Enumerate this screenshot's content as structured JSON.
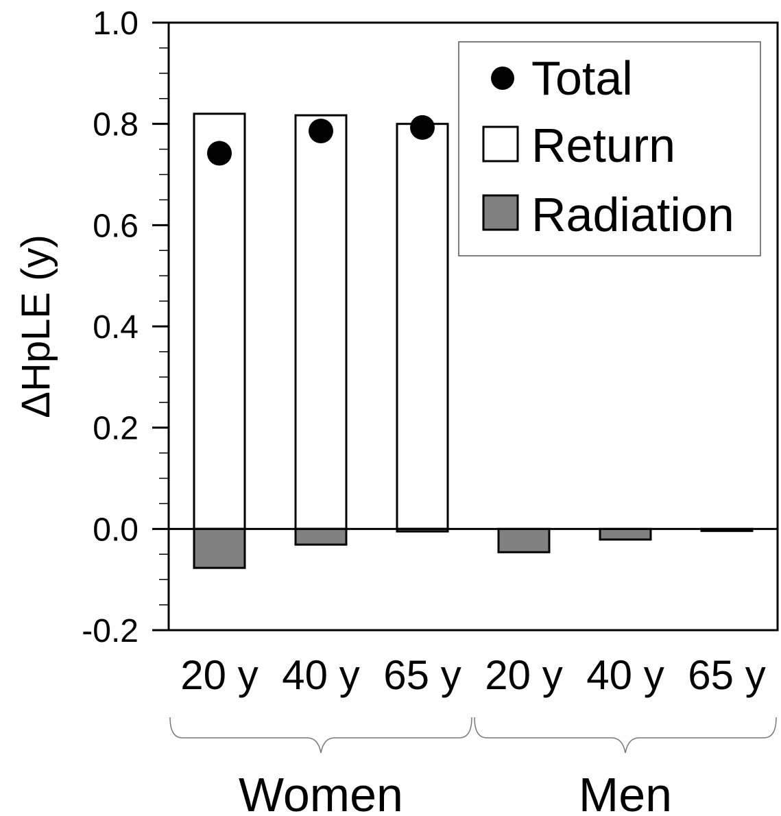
{
  "chart_data": {
    "type": "bar",
    "ylabel": "ΔHpLE (y)",
    "ylim": [
      -0.2,
      1.0
    ],
    "y_ticks": [
      "1.0",
      "0.8",
      "0.6",
      "0.4",
      "0.2",
      "0.0",
      "-0.2"
    ],
    "y_tick_values": [
      1.0,
      0.8,
      0.6,
      0.4,
      0.2,
      0.0,
      -0.2
    ],
    "categories": [
      "20 y",
      "40 y",
      "65 y",
      "20 y",
      "40 y",
      "65 y"
    ],
    "groups": [
      {
        "label": "Women",
        "categories": [
          0,
          1,
          2
        ]
      },
      {
        "label": "Men",
        "categories": [
          3,
          4,
          5
        ]
      }
    ],
    "series": [
      {
        "name": "Return",
        "kind": "bar",
        "color": "#ffffff",
        "values": [
          0.82,
          0.817,
          0.8,
          null,
          null,
          null
        ]
      },
      {
        "name": "Radiation",
        "kind": "bar",
        "color": "#808080",
        "values": [
          -0.077,
          -0.031,
          -0.005,
          -0.046,
          -0.021,
          -0.004
        ]
      },
      {
        "name": "Total",
        "kind": "point",
        "color": "#000000",
        "values": [
          0.742,
          0.786,
          0.793,
          null,
          null,
          null
        ]
      }
    ],
    "legend": {
      "position": "top-right",
      "entries": [
        "Total",
        "Return",
        "Radiation"
      ]
    },
    "grid": false
  }
}
